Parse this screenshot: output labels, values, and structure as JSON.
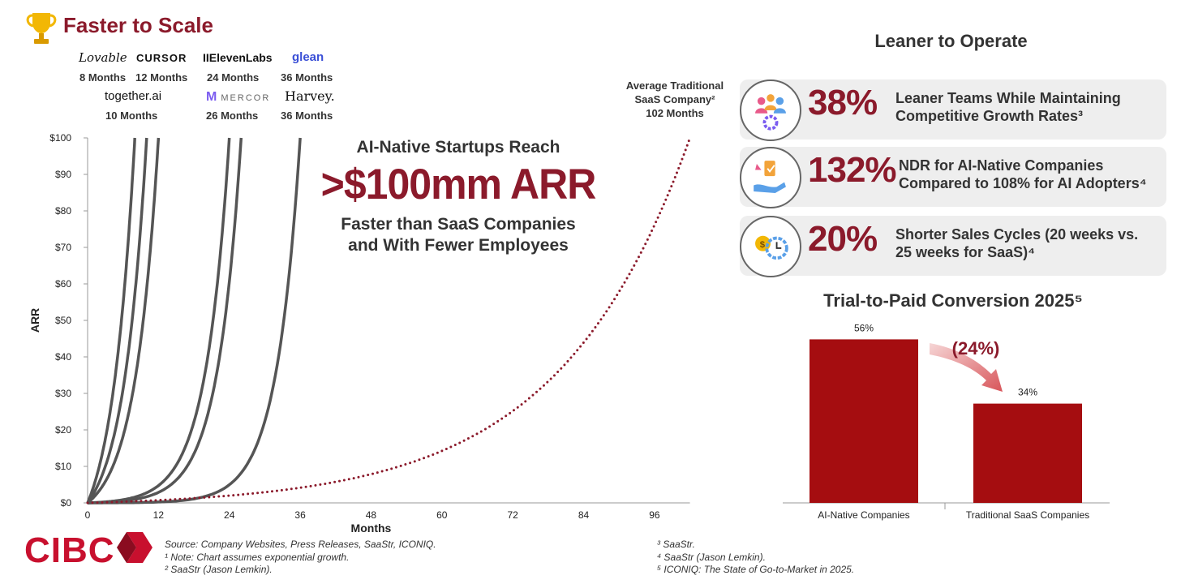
{
  "header": {
    "title": "Faster to Scale",
    "trophy_icon": "trophy-icon"
  },
  "companies": [
    {
      "name": "Lovable",
      "months_label": "8 Months",
      "months": 8
    },
    {
      "name": "CURSOR",
      "months_label": "12 Months",
      "months": 12
    },
    {
      "name": "IIElevenLabs",
      "months_label": "24 Months",
      "months": 24
    },
    {
      "name": "glean",
      "months_label": "36 Months",
      "months": 36
    },
    {
      "name": "together.ai",
      "months_label": "10 Months",
      "months": 10
    },
    {
      "name": "MERCOR",
      "months_label": "26 Months",
      "months": 26
    },
    {
      "name": "Harvey.",
      "months_label": "36 Months",
      "months": 36
    }
  ],
  "traditional": {
    "line1": "Average Traditional",
    "line2": "SaaS Company²",
    "months_label": "102 Months"
  },
  "headline": {
    "lead": "AI-Native Startups Reach",
    "big": ">$100mm ARR",
    "sub1": "Faster than SaaS Companies",
    "sub2": "and With Fewer Employees"
  },
  "chart_data": [
    {
      "type": "line",
      "xlabel": "Months",
      "ylabel": "ARR",
      "xlim": [
        0,
        102
      ],
      "ylim": [
        0,
        100
      ],
      "x_ticks": [
        "0",
        "12",
        "24",
        "36",
        "48",
        "60",
        "72",
        "84",
        "96"
      ],
      "y_ticks": [
        "$0",
        "$10",
        "$20",
        "$30",
        "$40",
        "$50",
        "$60",
        "$70",
        "$80",
        "$90",
        "$100"
      ],
      "growth": "exponential",
      "series": [
        {
          "months_to_100": 8,
          "style": "solid"
        },
        {
          "months_to_100": 10,
          "style": "solid"
        },
        {
          "months_to_100": 12,
          "style": "solid"
        },
        {
          "months_to_100": 24,
          "style": "solid"
        },
        {
          "months_to_100": 26,
          "style": "solid"
        },
        {
          "months_to_100": 36,
          "style": "solid"
        },
        {
          "months_to_100": 102,
          "style": "dotted"
        }
      ],
      "colors": {
        "ai": "#555555",
        "traditional": "#8b1a2b"
      }
    },
    {
      "type": "bar",
      "title": "Trial-to-Paid Conversion 2025⁵",
      "categories": [
        "AI-Native Companies",
        "Traditional SaaS Companies"
      ],
      "values": [
        56,
        34
      ],
      "value_labels": [
        "56%",
        "34%"
      ],
      "ylim": [
        0,
        70
      ],
      "annotation": "(24%)",
      "color": "#a50d10"
    }
  ],
  "lean": {
    "title": "Leaner to Operate",
    "stats": [
      {
        "value": "38%",
        "line1": "Leaner Teams While Maintaining",
        "line2": "Competitive Growth Rates³",
        "icon": "team-gear-icon"
      },
      {
        "value": "132%",
        "line1": "NDR for AI-Native Companies",
        "line2": "Compared to 108% for AI Adopters⁴",
        "icon": "growth-hand-icon"
      },
      {
        "value": "20%",
        "line1": "Shorter Sales Cycles (20 weeks vs.",
        "line2": "25 weeks for SaaS)⁴",
        "icon": "coin-clock-icon"
      }
    ]
  },
  "footer": {
    "brand": "CIBC",
    "left_notes": [
      "Source: Company Websites, Press Releases, SaaStr, ICONIQ.",
      "¹ Note: Chart assumes exponential growth.",
      "² SaaStr (Jason Lemkin)."
    ],
    "right_notes": [
      "³ SaaStr.",
      "⁴ SaaStr (Jason Lemkin).",
      "⁵ ICONIQ: The State of Go-to-Market in 2025."
    ]
  }
}
